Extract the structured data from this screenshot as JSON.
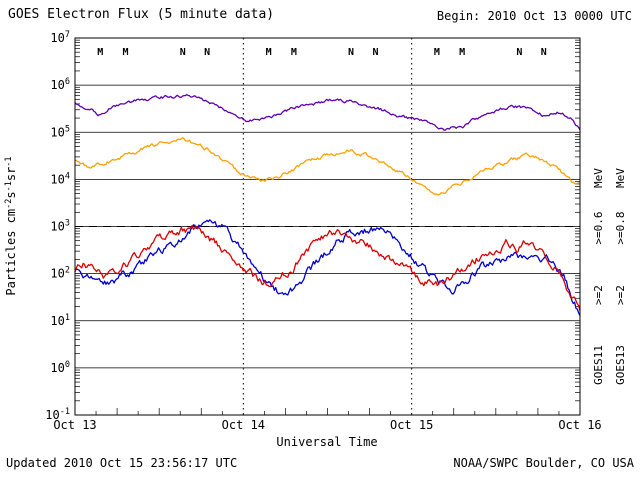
{
  "page": {
    "updated": "Updated 2010 Oct 15 23:56:17 UTC",
    "credit": "NOAA/SWPC Boulder, CO USA"
  },
  "chart_data": {
    "type": "line",
    "title": "GOES Electron Flux (5 minute data)",
    "begin_label": "Begin: 2010 Oct 13 0000 UTC",
    "xlabel": "Universal Time",
    "ylabel_parts": [
      {
        "t": "Particles cm"
      },
      {
        "t": "-2",
        "sup": true
      },
      {
        "t": "s"
      },
      {
        "t": "-1",
        "sup": true
      },
      {
        "t": "sr"
      },
      {
        "t": "-1",
        "sup": true
      }
    ],
    "x_ticks": [
      "Oct 13",
      "Oct 14",
      "Oct 15",
      "Oct 16"
    ],
    "x_range_days": [
      0,
      3
    ],
    "y_exponents": [
      7,
      6,
      5,
      4,
      3,
      2,
      1,
      0,
      -1
    ],
    "y_log_range": [
      -1,
      7
    ],
    "grid": true,
    "y_scale": "log10",
    "flux_units": "Particles cm-2 s-1 sr-1",
    "threshold_flux": 1000,
    "day_boundaries_dotted": [
      1,
      2
    ],
    "series": [
      {
        "name": "GOES11 >=0.6 MeV",
        "satellite": "GOES11",
        "channel": ">=0.6 MeV",
        "color": "#5e00b0",
        "noise": 0.03,
        "x_days": [
          0,
          0.06,
          0.12,
          0.14,
          0.2,
          0.3,
          0.45,
          0.6,
          0.72,
          0.85,
          0.95,
          1.02,
          1.1,
          1.25,
          1.4,
          1.55,
          1.65,
          1.8,
          1.95,
          2.0,
          2.1,
          2.2,
          2.3,
          2.45,
          2.6,
          2.7,
          2.8,
          2.87,
          2.95,
          3.0
        ],
        "flux": [
          420000,
          350000,
          280000,
          220000,
          320000,
          420000,
          520000,
          600000,
          550000,
          350000,
          220000,
          170000,
          190000,
          280000,
          400000,
          480000,
          450000,
          320000,
          210000,
          190000,
          160000,
          120000,
          130000,
          250000,
          350000,
          330000,
          220000,
          260000,
          200000,
          120000
        ]
      },
      {
        "name": "GOES13 >=0.8 MeV",
        "satellite": "GOES13",
        "channel": ">=0.8 MeV",
        "color": "#ffa000",
        "noise": 0.035,
        "x_days": [
          0,
          0.08,
          0.15,
          0.25,
          0.4,
          0.55,
          0.65,
          0.75,
          0.85,
          0.95,
          1.05,
          1.12,
          1.2,
          1.35,
          1.5,
          1.62,
          1.72,
          1.85,
          1.95,
          2.05,
          2.15,
          2.25,
          2.4,
          2.55,
          2.68,
          2.78,
          2.85,
          2.92,
          3.0
        ],
        "flux": [
          23000,
          19000,
          20000,
          28000,
          45000,
          63000,
          68000,
          52000,
          32000,
          16000,
          10000,
          8900,
          11000,
          20000,
          32000,
          40000,
          35000,
          22000,
          13000,
          7100,
          5400,
          7100,
          13000,
          22000,
          32000,
          26000,
          18000,
          11000,
          7100
        ]
      },
      {
        "name": "GOES11 >=2 MeV",
        "satellite": "GOES11",
        "channel": ">=2 MeV",
        "color": "#0000cd",
        "noise": 0.07,
        "x_days": [
          0,
          0.07,
          0.13,
          0.2,
          0.28,
          0.35,
          0.45,
          0.55,
          0.65,
          0.75,
          0.82,
          0.88,
          0.95,
          1.02,
          1.1,
          1.18,
          1.25,
          1.32,
          1.4,
          1.5,
          1.6,
          1.68,
          1.78,
          1.88,
          1.95,
          2.02,
          2.1,
          2.18,
          2.25,
          2.32,
          2.4,
          2.5,
          2.6,
          2.68,
          2.75,
          2.8,
          2.85,
          2.9,
          2.94,
          3.0
        ],
        "flux": [
          112,
          89,
          71,
          60,
          89,
          126,
          224,
          398,
          631,
          1000,
          1200,
          1000,
          500,
          250,
          100,
          50,
          35,
          56,
          126,
          316,
          631,
          850,
          790,
          710,
          400,
          200,
          100,
          56,
          45,
          71,
          126,
          178,
          250,
          224,
          200,
          224,
          178,
          100,
          40,
          13
        ]
      },
      {
        "name": "GOES13 >=2 MeV",
        "satellite": "GOES13",
        "channel": ">=2 MeV",
        "color": "#d80000",
        "noise": 0.07,
        "x_days": [
          0,
          0.05,
          0.1,
          0.18,
          0.25,
          0.32,
          0.4,
          0.5,
          0.6,
          0.68,
          0.75,
          0.82,
          0.9,
          0.98,
          1.06,
          1.14,
          1.22,
          1.3,
          1.38,
          1.46,
          1.52,
          1.6,
          1.7,
          1.8,
          1.9,
          2.0,
          2.08,
          2.16,
          2.25,
          2.33,
          2.42,
          2.5,
          2.56,
          2.62,
          2.68,
          2.74,
          2.8,
          2.85,
          2.9,
          2.95,
          3.0
        ],
        "flux": [
          112,
          158,
          126,
          89,
          112,
          178,
          316,
          562,
          790,
          890,
          760,
          500,
          282,
          158,
          89,
          63,
          79,
          141,
          316,
          562,
          760,
          710,
          500,
          316,
          178,
          100,
          71,
          63,
          100,
          158,
          251,
          355,
          447,
          316,
          447,
          316,
          251,
          158,
          79,
          32,
          16
        ]
      }
    ],
    "markers": [
      {
        "label": "M",
        "color": "#d80000",
        "day_fracs": [
          0.15,
          1.15,
          2.15
        ]
      },
      {
        "label": "M",
        "color": "#0000cd",
        "day_fracs": [
          0.3,
          1.3,
          2.3
        ]
      },
      {
        "label": "N",
        "color": "#d80000",
        "day_fracs": [
          0.64,
          1.64,
          2.64
        ]
      },
      {
        "label": "N",
        "color": "#0000cd",
        "day_fracs": [
          0.785,
          1.785,
          2.785
        ]
      }
    ],
    "right_labels": [
      {
        "text": "MeV",
        "color": "#5e00b0",
        "col": 0,
        "row": 0
      },
      {
        "text": ">=0.6",
        "color": "#5e00b0",
        "col": 0,
        "row": 1
      },
      {
        "text": ">=2",
        "color": "#0000cd",
        "col": 0,
        "row": 2
      },
      {
        "text": "GOES11",
        "color": "#0000cd",
        "col": 0,
        "row": 3
      },
      {
        "text": "MeV",
        "color": "#ffa000",
        "col": 1,
        "row": 0
      },
      {
        "text": ">=0.8",
        "color": "#ffa000",
        "col": 1,
        "row": 1
      },
      {
        "text": ">=2",
        "color": "#d80000",
        "col": 1,
        "row": 2
      },
      {
        "text": "GOES13",
        "color": "#d80000",
        "col": 1,
        "row": 3
      }
    ]
  }
}
